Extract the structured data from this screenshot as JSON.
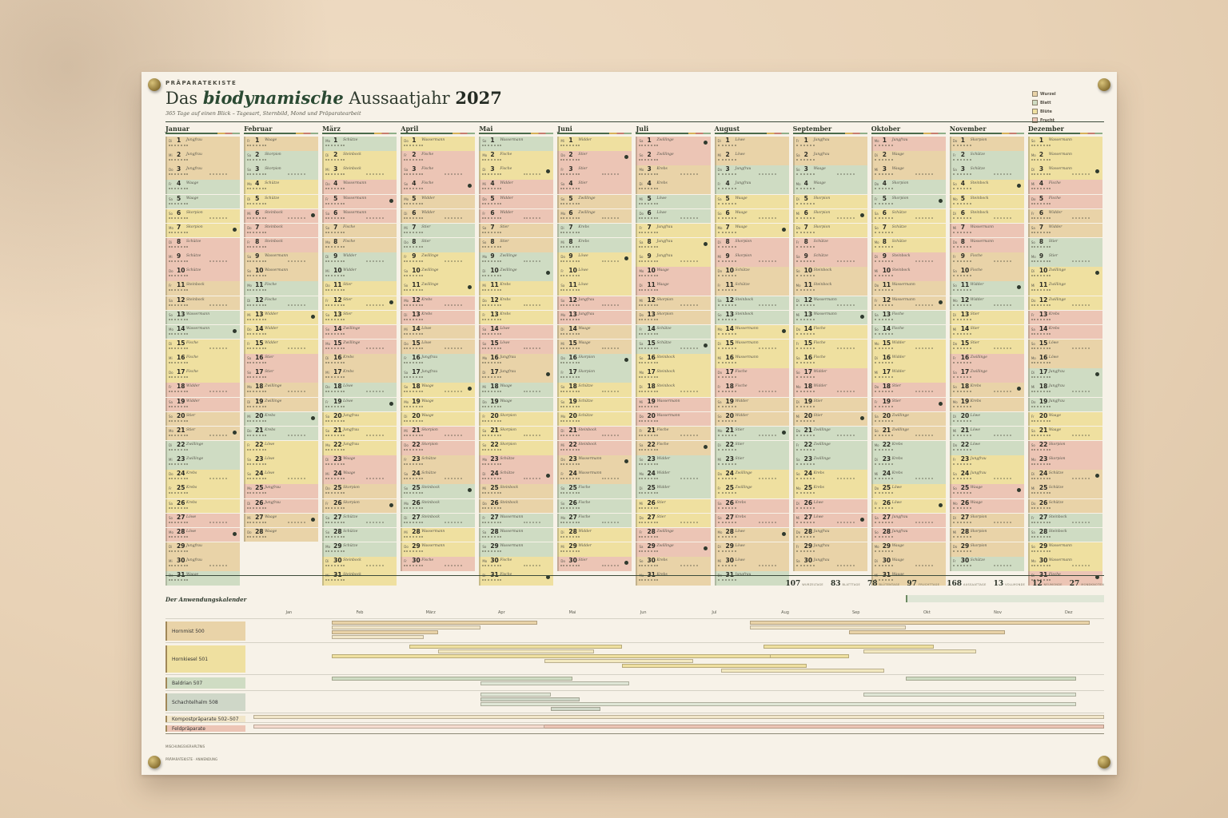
{
  "poster": {
    "kicker": "PRÄPARATEKISTE",
    "title_pre": "Das",
    "title_italic": "biodynamische",
    "title_post": "Aussaatjahr",
    "title_year": "2027",
    "subtitle": "365 Tage auf einen Blick – Tagesart, Sternbild, Mond und Präparatearbeit",
    "intro": "",
    "legend": [
      {
        "name": "Wurzel",
        "color": "#e9d3a8"
      },
      {
        "name": "Blatt",
        "color": "#cfdcc3"
      },
      {
        "name": "Blüte",
        "color": "#efe0a0"
      },
      {
        "name": "Frucht",
        "color": "#ecc5b5"
      }
    ]
  },
  "months": [
    {
      "name": "Januar",
      "days": 31,
      "start_offset": 0
    },
    {
      "name": "Februar",
      "days": 28,
      "start_offset": 1
    },
    {
      "name": "März",
      "days": 31,
      "start_offset": 2
    },
    {
      "name": "April",
      "days": 30,
      "start_offset": 3
    },
    {
      "name": "Mai",
      "days": 31,
      "start_offset": 0
    },
    {
      "name": "Juni",
      "days": 30,
      "start_offset": 1
    },
    {
      "name": "Juli",
      "days": 31,
      "start_offset": 2
    },
    {
      "name": "August",
      "days": 31,
      "start_offset": 3
    },
    {
      "name": "September",
      "days": 30,
      "start_offset": 2
    },
    {
      "name": "Oktober",
      "days": 31,
      "start_offset": 0
    },
    {
      "name": "November",
      "days": 30,
      "start_offset": 1
    },
    {
      "name": "Dezember",
      "days": 31,
      "start_offset": 3
    }
  ],
  "signs": [
    "Jungfrau",
    "Waage",
    "Skorpion",
    "Schütze",
    "Steinbock",
    "Wassermann",
    "Fische",
    "Widder",
    "Stier",
    "Zwillinge",
    "Krebs",
    "Löwe"
  ],
  "stats": [
    {
      "n": "107",
      "l": "WURZELTAGE"
    },
    {
      "n": "83",
      "l": "BLATTTAGE"
    },
    {
      "n": "78",
      "l": "BLÜTENTAGE"
    },
    {
      "n": "97",
      "l": "FRUCHTTAGE"
    },
    {
      "n": "168",
      "l": "AUSSAATTAGE"
    },
    {
      "n": "13",
      "l": "VOLLMONDE"
    },
    {
      "n": "12",
      "l": "NEUMONDE"
    },
    {
      "n": "27",
      "l": "MONDKNOTEN"
    }
  ],
  "anwendung": {
    "title": "Der Anwendungskalender",
    "months": [
      "Jan",
      "Feb",
      "März",
      "Apr",
      "Mai",
      "Jun",
      "Jul",
      "Aug",
      "Sep",
      "Okt",
      "Nov",
      "Dez"
    ],
    "rows": [
      {
        "label": "Hornmist 500",
        "color": "#e9d3a8",
        "height": 30,
        "bars": [
          {
            "s": 1.1,
            "e": 4.0,
            "c": "#e9d3a8"
          },
          {
            "s": 1.1,
            "e": 3.2,
            "c": "#f1e6c9"
          },
          {
            "s": 1.1,
            "e": 2.6,
            "c": "#e9d3a8"
          },
          {
            "s": 1.1,
            "e": 2.4,
            "c": "#f1e6c9"
          },
          {
            "s": 7.0,
            "e": 11.8,
            "c": "#e9d3a8"
          },
          {
            "s": 7.0,
            "e": 9.2,
            "c": "#f1e6c9"
          },
          {
            "s": 8.4,
            "e": 10.6,
            "c": "#e9d3a8"
          }
        ]
      },
      {
        "label": "Hornkiesel 501",
        "color": "#efe0a0",
        "height": 40,
        "bars": [
          {
            "s": 2.2,
            "e": 5.2,
            "c": "#efe0a0"
          },
          {
            "s": 2.6,
            "e": 4.8,
            "c": "#f3e9c0"
          },
          {
            "s": 3.2,
            "e": 8.4,
            "c": "#efe0a0"
          },
          {
            "s": 4.1,
            "e": 6.2,
            "c": "#f3e9c0"
          },
          {
            "s": 5.2,
            "e": 7.8,
            "c": "#efe0a0"
          },
          {
            "s": 6.6,
            "e": 8.9,
            "c": "#f3e9c0"
          },
          {
            "s": 7.2,
            "e": 9.6,
            "c": "#efe0a0"
          },
          {
            "s": 8.6,
            "e": 10.2,
            "c": "#f3e9c0"
          },
          {
            "s": 1.1,
            "e": 7.3,
            "c": "#efe0a0"
          }
        ]
      },
      {
        "label": "Baldrian 507",
        "color": "#cfdcc3",
        "height": 20,
        "bars": [
          {
            "s": 1.1,
            "e": 4.5,
            "c": "#cfdcc3"
          },
          {
            "s": 3.2,
            "e": 5.3,
            "c": "#dfe6d6"
          },
          {
            "s": 9.2,
            "e": 11.6,
            "c": "#cfdcc3"
          }
        ]
      },
      {
        "label": "Schachtelhalm 508",
        "color": "#cfd7c8",
        "height": 28,
        "bars": [
          {
            "s": 3.2,
            "e": 4.2,
            "c": "#dfe6d6"
          },
          {
            "s": 3.2,
            "e": 4.6,
            "c": "#cfd7c8"
          },
          {
            "s": 3.2,
            "e": 11.6,
            "c": "#dfe6d6"
          },
          {
            "s": 4.2,
            "e": 4.9,
            "c": "#cfd7c8"
          },
          {
            "s": 8.6,
            "e": 11.6,
            "c": "#dfe6d6"
          }
        ]
      },
      {
        "label": "Kompostpräparate 502–507",
        "color": "#f1e6c9",
        "height": 12,
        "bars": [
          {
            "s": 0.0,
            "e": 12.0,
            "c": "#f1e6c9"
          }
        ]
      },
      {
        "label": "Feldpräparate",
        "color": "#ecc5b5",
        "height": 14,
        "bars": [
          {
            "s": 0.0,
            "e": 12.0,
            "c": "#ecc5b5"
          },
          {
            "s": 0.0,
            "e": 4.1,
            "c": "#f5dcd0"
          }
        ]
      }
    ]
  },
  "footer": {
    "line1_label": "MISCHUNGSVERHÄLTNIS",
    "line2_label": "PRÄPARATEKISTE · ANWENDUNG"
  }
}
